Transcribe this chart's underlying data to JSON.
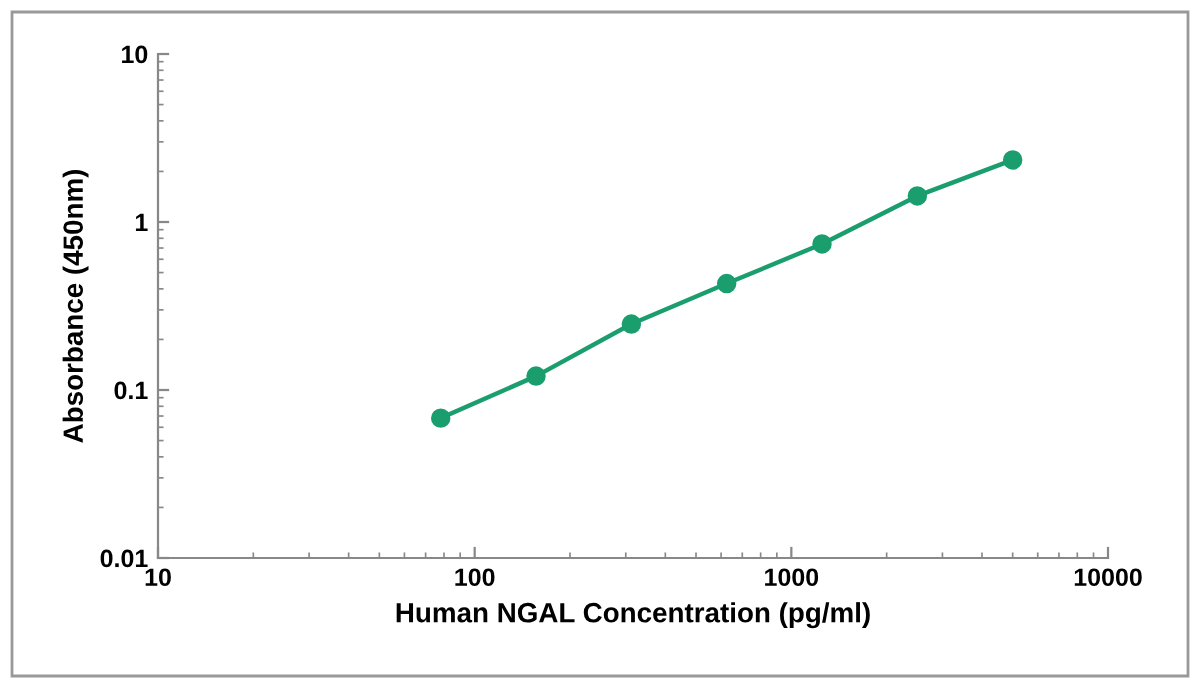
{
  "chart_data": {
    "type": "line",
    "xlabel": "Human NGAL Concentration (pg/ml)",
    "ylabel": "Absorbance (450nm)",
    "log": "xy",
    "x": [
      78.125,
      156.25,
      312.5,
      625,
      1250,
      2500,
      5000
    ],
    "series": [
      {
        "color": "#1b9e6e",
        "values": [
          0.068,
          0.121,
          0.247,
          0.43,
          0.74,
          1.43,
          2.34
        ]
      }
    ],
    "xlim": [
      10,
      10000
    ],
    "xticks": [
      10,
      100,
      1000,
      10000
    ],
    "ylim": [
      0.01,
      10
    ],
    "yticks": [
      0.01,
      0.1,
      1,
      10
    ],
    "marker": "circle",
    "line_style": "solid",
    "grid": false,
    "legend": false
  }
}
